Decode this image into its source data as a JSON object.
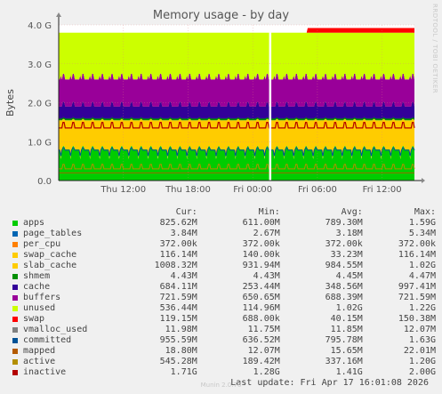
{
  "side_text": "RRDTOOL / TOBI OETIKER",
  "footer_brand": "Munin 2.0.76",
  "legend_headers": {
    "cur": "Cur:",
    "min": "Min:",
    "avg": "Avg:",
    "max": "Max:"
  },
  "last_update": "Last update: Fri Apr 17 16:01:08 2026",
  "legend": [
    {
      "name": "apps",
      "color": "#00cc00",
      "cur": "825.62M",
      "min": "611.00M",
      "avg": "789.30M",
      "max": "1.59G"
    },
    {
      "name": "page_tables",
      "color": "#0066b3",
      "cur": "3.84M",
      "min": "2.67M",
      "avg": "3.18M",
      "max": "5.34M"
    },
    {
      "name": "per_cpu",
      "color": "#ff8000",
      "cur": "372.00k",
      "min": "372.00k",
      "avg": "372.00k",
      "max": "372.00k"
    },
    {
      "name": "swap_cache",
      "color": "#ffcc00",
      "cur": "116.14M",
      "min": "140.00k",
      "avg": "33.23M",
      "max": "116.14M"
    },
    {
      "name": "slab_cache",
      "color": "#ffcc00",
      "cur": "1008.32M",
      "min": "931.94M",
      "avg": "984.55M",
      "max": "1.02G"
    },
    {
      "name": "shmem",
      "color": "#008f00",
      "cur": "4.43M",
      "min": "4.43M",
      "avg": "4.45M",
      "max": "4.47M"
    },
    {
      "name": "cache",
      "color": "#330099",
      "cur": "684.11M",
      "min": "253.44M",
      "avg": "348.56M",
      "max": "997.41M"
    },
    {
      "name": "buffers",
      "color": "#990099",
      "cur": "721.59M",
      "min": "650.65M",
      "avg": "688.39M",
      "max": "721.59M"
    },
    {
      "name": "unused",
      "color": "#ccff00",
      "cur": "536.44M",
      "min": "114.96M",
      "avg": "1.02G",
      "max": "1.22G"
    },
    {
      "name": "swap",
      "color": "#ff0000",
      "cur": "119.15M",
      "min": "688.00k",
      "avg": "40.15M",
      "max": "150.38M"
    },
    {
      "name": "vmalloc_used",
      "color": "#808080",
      "cur": "11.98M",
      "min": "11.75M",
      "avg": "11.85M",
      "max": "12.07M"
    },
    {
      "name": "committed",
      "color": "#005296",
      "cur": "955.59M",
      "min": "636.52M",
      "avg": "795.78M",
      "max": "1.63G"
    },
    {
      "name": "mapped",
      "color": "#b35a00",
      "cur": "18.80M",
      "min": "12.07M",
      "avg": "15.65M",
      "max": "22.01M"
    },
    {
      "name": "active",
      "color": "#b38f00",
      "cur": "545.28M",
      "min": "189.42M",
      "avg": "337.16M",
      "max": "1.20G"
    },
    {
      "name": "inactive",
      "color": "#b30000",
      "cur": "1.71G",
      "min": "1.28G",
      "avg": "1.41G",
      "max": "2.00G"
    }
  ],
  "chart_data": {
    "type": "area",
    "title": "Memory usage - by day",
    "ylabel": "Bytes",
    "ylim": [
      0,
      4
    ],
    "yunit": "G",
    "y_ticks": [
      0,
      1,
      2,
      3,
      4
    ],
    "y_tick_labels": [
      "0.0",
      "1.0 G",
      "2.0 G",
      "3.0 G",
      "4.0 G"
    ],
    "x_range_hours": [
      0,
      33
    ],
    "x_ticks": [
      {
        "hour": 6,
        "label": "Thu 12:00"
      },
      {
        "hour": 12,
        "label": "Thu 18:00"
      },
      {
        "hour": 18,
        "label": "Fri 00:00"
      },
      {
        "hour": 24,
        "label": "Fri 06:00"
      },
      {
        "hour": 30,
        "label": "Fri 12:00"
      }
    ],
    "gap_hour": 19.6,
    "stack_typical_top_G": {
      "apps": 0.8,
      "slab_cache": 1.55,
      "cache": 1.9,
      "buffers": 2.6,
      "unused": 3.8
    },
    "swap_G": {
      "before_hour_23": 0.0,
      "after_hour_23": 0.12
    },
    "grid": true
  }
}
